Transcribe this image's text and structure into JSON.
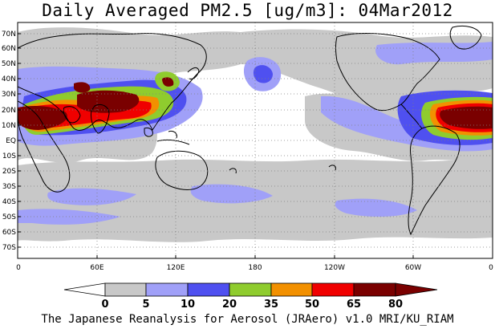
{
  "title": "Daily Averaged PM2.5 [ug/m3]: 04Mar2012",
  "footer": "The Japanese Reanalysis for Aerosol (JRAero) v1.0 MRI/KU_RIAM",
  "lat_labels": [
    "70N",
    "60N",
    "50N",
    "40N",
    "30N",
    "20N",
    "10N",
    "EQ",
    "10S",
    "20S",
    "30S",
    "40S",
    "50S",
    "60S",
    "70S"
  ],
  "lon_labels": [
    "0",
    "60E",
    "120E",
    "180",
    "120W",
    "60W",
    "0"
  ],
  "legend": {
    "thresholds": [
      "0",
      "5",
      "10",
      "20",
      "35",
      "50",
      "65",
      "80"
    ],
    "colors": [
      "#ffffff",
      "#c8c8c8",
      "#a0a0f8",
      "#4f50f0",
      "#8fcc2e",
      "#f29000",
      "#f00000",
      "#7a0000"
    ]
  }
}
